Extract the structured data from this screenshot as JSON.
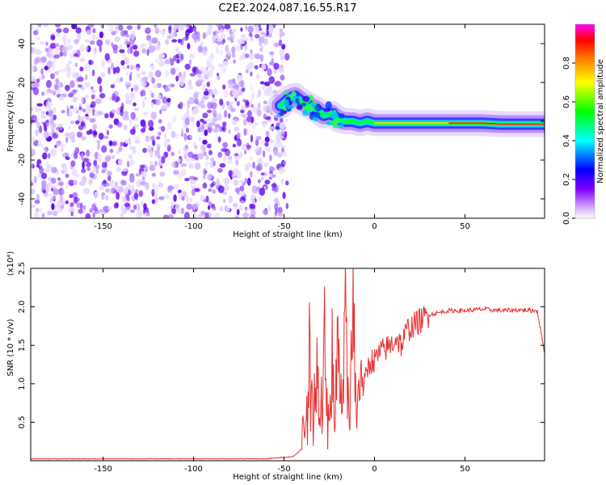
{
  "title": "C2E2.2024.087.16.55.R17",
  "chart_data": [
    {
      "type": "heatmap",
      "xlabel": "Height of straight line (km)",
      "ylabel": "Frequency (Hz)",
      "xlim": [
        -190,
        94
      ],
      "ylim": [
        -50,
        50
      ],
      "xticks": [
        -150,
        -100,
        -50,
        0,
        50
      ],
      "yticks": [
        -40,
        -20,
        0,
        20,
        40
      ],
      "noise_region_x": [
        -190,
        -50
      ],
      "signal_track": {
        "x": [
          -52,
          -47,
          -44,
          -40,
          -36,
          -32,
          -28,
          -24,
          -20,
          -16,
          -12,
          -8,
          -4,
          0,
          5,
          10,
          15,
          20,
          30,
          40,
          50,
          60,
          70,
          80,
          94
        ],
        "y": [
          8,
          12,
          13,
          10,
          8,
          6,
          3,
          4,
          1,
          0,
          0,
          -1,
          0,
          -1,
          -1,
          -1,
          -1,
          -1,
          -1,
          -1,
          -1,
          -1,
          -1.5,
          -1.5,
          -1.5
        ]
      },
      "colorbar": {
        "label": "Normalized spectral amplitude",
        "range": [
          0,
          1
        ],
        "ticks": [
          "0.0",
          "0.2",
          "0.4",
          "0.6",
          "0.8"
        ],
        "colors": [
          "#ffffff",
          "#8000ff",
          "#0000ff",
          "#00ffff",
          "#00ff00",
          "#ffff00",
          "#ff8000",
          "#ff0000",
          "#ff00ff"
        ]
      }
    },
    {
      "type": "line",
      "xlabel": "Height of straight line (km)",
      "ylabel": "SNR (10 * v/v)",
      "scale_label": "(x10⁴)",
      "xlim": [
        -190,
        94
      ],
      "ylim": [
        0,
        2.5
      ],
      "xticks": [
        -150,
        -100,
        -50,
        0,
        50
      ],
      "yticks": [
        0.5,
        1.0,
        1.5,
        2.0,
        2.5
      ],
      "ytick_labels": [
        "0.5",
        "1.0",
        "1.5",
        "2.0",
        "2.5"
      ],
      "color": "#e83030",
      "series": [
        {
          "x": [
            -190,
            -120,
            -60,
            -45,
            -40,
            -38,
            -36,
            -34,
            -32,
            -30,
            -28,
            -26,
            -24,
            -22,
            -20,
            -18,
            -16,
            -14,
            -12,
            -10,
            -8,
            -6,
            -4,
            -2,
            0,
            3,
            6,
            9,
            12,
            15,
            18,
            21,
            24,
            27,
            30,
            35,
            40,
            50,
            60,
            70,
            80,
            90,
            94
          ],
          "y": [
            0.02,
            0.02,
            0.02,
            0.05,
            0.15,
            0.3,
            1.5,
            0.2,
            2.0,
            0.1,
            2.2,
            0.3,
            1.8,
            0.1,
            1.9,
            0.2,
            2.55,
            0.1,
            2.4,
            0.5,
            1.3,
            0.9,
            1.2,
            1.3,
            1.3,
            1.4,
            1.45,
            1.5,
            1.6,
            1.5,
            1.7,
            1.75,
            1.8,
            1.85,
            1.9,
            1.92,
            1.95,
            1.95,
            1.97,
            1.95,
            1.96,
            1.95,
            1.4
          ]
        }
      ]
    }
  ]
}
